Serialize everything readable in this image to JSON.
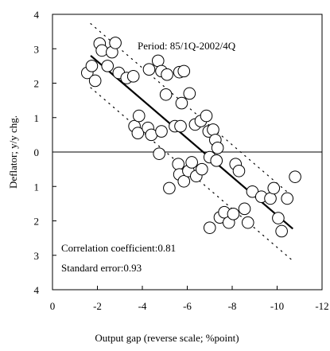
{
  "chart_data": {
    "type": "scatter",
    "xlabel": "Output gap (reverse scale; %point)",
    "ylabel": "Deflator; y/y chg.",
    "xlim": [
      0,
      -12
    ],
    "ylim": [
      -4,
      4
    ],
    "x_reversed": true,
    "x_ticks": [
      0,
      -2,
      -4,
      -6,
      -8,
      -10,
      -12
    ],
    "x_tick_labels": [
      "0",
      "-2",
      "-4",
      "-6",
      "-8",
      "-10",
      "-12"
    ],
    "y_ticks": [
      4,
      3,
      2,
      1,
      0,
      -1,
      -2,
      -3,
      -4
    ],
    "y_tick_labels": [
      "4",
      "3",
      "2",
      "1",
      "0",
      "1",
      "2",
      "3",
      "4"
    ],
    "grid": false,
    "annotations": {
      "period": "Period: 85/1Q-2002/4Q",
      "correlation": "Correlation coefficient:0.81",
      "std_error": "Standard error:0.93"
    },
    "regression_line": {
      "x": [
        -1.7,
        -10.7
      ],
      "y": [
        2.8,
        -2.23
      ]
    },
    "upper_band": {
      "x": [
        -1.7,
        -10.7
      ],
      "y": [
        3.73,
        -1.3
      ]
    },
    "lower_band": {
      "x": [
        -1.7,
        -10.7
      ],
      "y": [
        1.87,
        -3.16
      ]
    },
    "series": [
      {
        "points": [
          [
            -1.55,
            2.3
          ],
          [
            -1.75,
            2.5
          ],
          [
            -1.9,
            2.07
          ],
          [
            -2.1,
            3.15
          ],
          [
            -2.2,
            2.95
          ],
          [
            -2.45,
            2.5
          ],
          [
            -2.65,
            2.9
          ],
          [
            -2.8,
            3.17
          ],
          [
            -2.95,
            2.3
          ],
          [
            -3.3,
            2.15
          ],
          [
            -3.6,
            2.2
          ],
          [
            -4.3,
            2.4
          ],
          [
            -4.7,
            2.65
          ],
          [
            -4.85,
            2.35
          ],
          [
            -5.1,
            2.25
          ],
          [
            -5.65,
            2.32
          ],
          [
            -5.75,
            1.42
          ],
          [
            -5.85,
            2.35
          ],
          [
            -6.1,
            1.7
          ],
          [
            -5.05,
            1.67
          ],
          [
            -3.65,
            0.75
          ],
          [
            -3.8,
            0.55
          ],
          [
            -3.85,
            1.05
          ],
          [
            -4.25,
            0.7
          ],
          [
            -4.4,
            0.5
          ],
          [
            -4.85,
            0.6
          ],
          [
            -5.45,
            0.75
          ],
          [
            -5.7,
            0.75
          ],
          [
            -6.35,
            0.8
          ],
          [
            -6.6,
            0.9
          ],
          [
            -6.85,
            1.05
          ],
          [
            -6.95,
            0.6
          ],
          [
            -7.15,
            0.65
          ],
          [
            -7.25,
            0.35
          ],
          [
            -7.35,
            0.12
          ],
          [
            -7.0,
            -0.15
          ],
          [
            -7.3,
            -0.25
          ],
          [
            -4.75,
            -0.05
          ],
          [
            -5.6,
            -0.35
          ],
          [
            -5.65,
            -0.65
          ],
          [
            -5.85,
            -0.85
          ],
          [
            -6.05,
            -0.55
          ],
          [
            -6.2,
            -0.3
          ],
          [
            -6.4,
            -0.7
          ],
          [
            -6.65,
            -0.5
          ],
          [
            -8.15,
            -0.35
          ],
          [
            -8.3,
            -0.55
          ],
          [
            -8.9,
            -1.15
          ],
          [
            -9.3,
            -1.3
          ],
          [
            -9.7,
            -1.35
          ],
          [
            -9.85,
            -1.05
          ],
          [
            -10.45,
            -1.35
          ],
          [
            -10.8,
            -0.72
          ],
          [
            -10.05,
            -1.92
          ],
          [
            -10.2,
            -2.3
          ],
          [
            -5.2,
            -1.05
          ],
          [
            -7.0,
            -2.2
          ],
          [
            -7.45,
            -1.9
          ],
          [
            -7.65,
            -1.75
          ],
          [
            -7.85,
            -2.05
          ],
          [
            -8.05,
            -1.8
          ],
          [
            -8.55,
            -1.65
          ],
          [
            -8.7,
            -2.05
          ]
        ]
      }
    ]
  }
}
